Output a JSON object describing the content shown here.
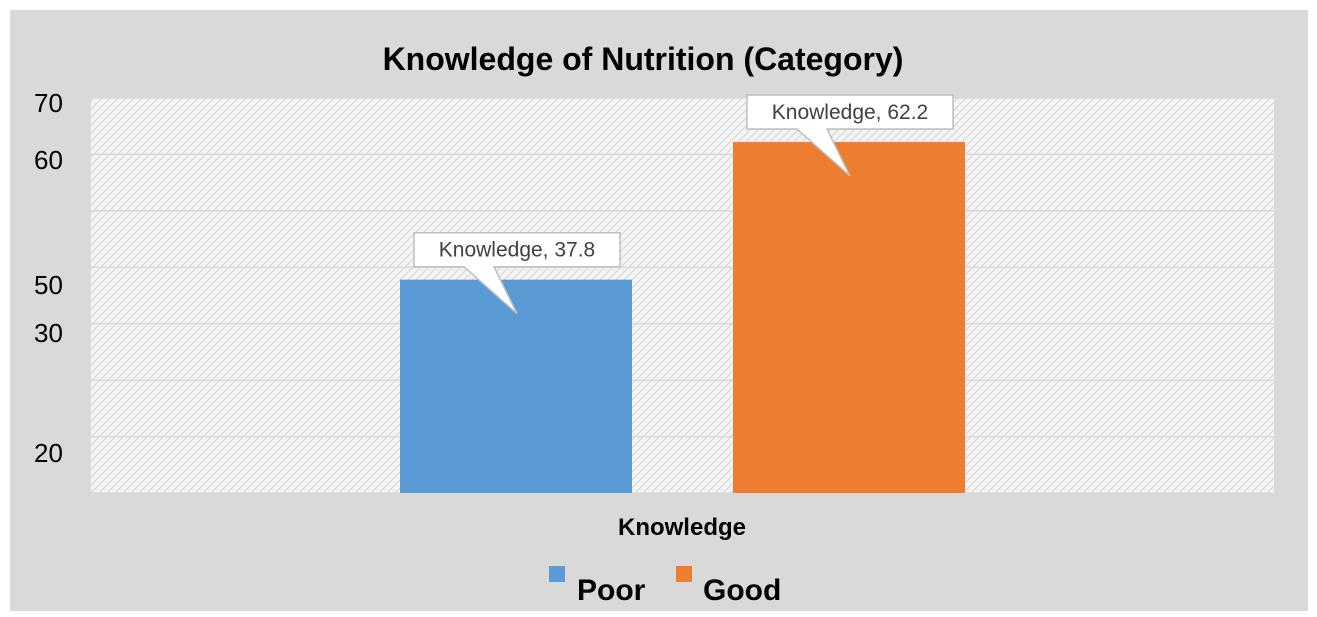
{
  "chart_data": {
    "type": "bar",
    "title": "Knowledge of Nutrition (Category)",
    "xlabel": "Knowledge",
    "ylabel": "",
    "categories": [
      "Knowledge"
    ],
    "series": [
      {
        "name": "Poor",
        "values": [
          37.8
        ],
        "color": "#5B9BD5",
        "data_label": "Knowledge, 37.8"
      },
      {
        "name": "Good",
        "values": [
          62.2
        ],
        "color": "#ED7D31",
        "data_label": "Knowledge, 62.2"
      }
    ],
    "y_tick_labels": [
      "70",
      "60",
      "50",
      "30",
      "20"
    ],
    "ylim": [
      0,
      70
    ],
    "grid": true,
    "legend_position": "bottom-center",
    "background_color": "#D9D9D9",
    "plot_area_color": "#F2F2F2"
  }
}
